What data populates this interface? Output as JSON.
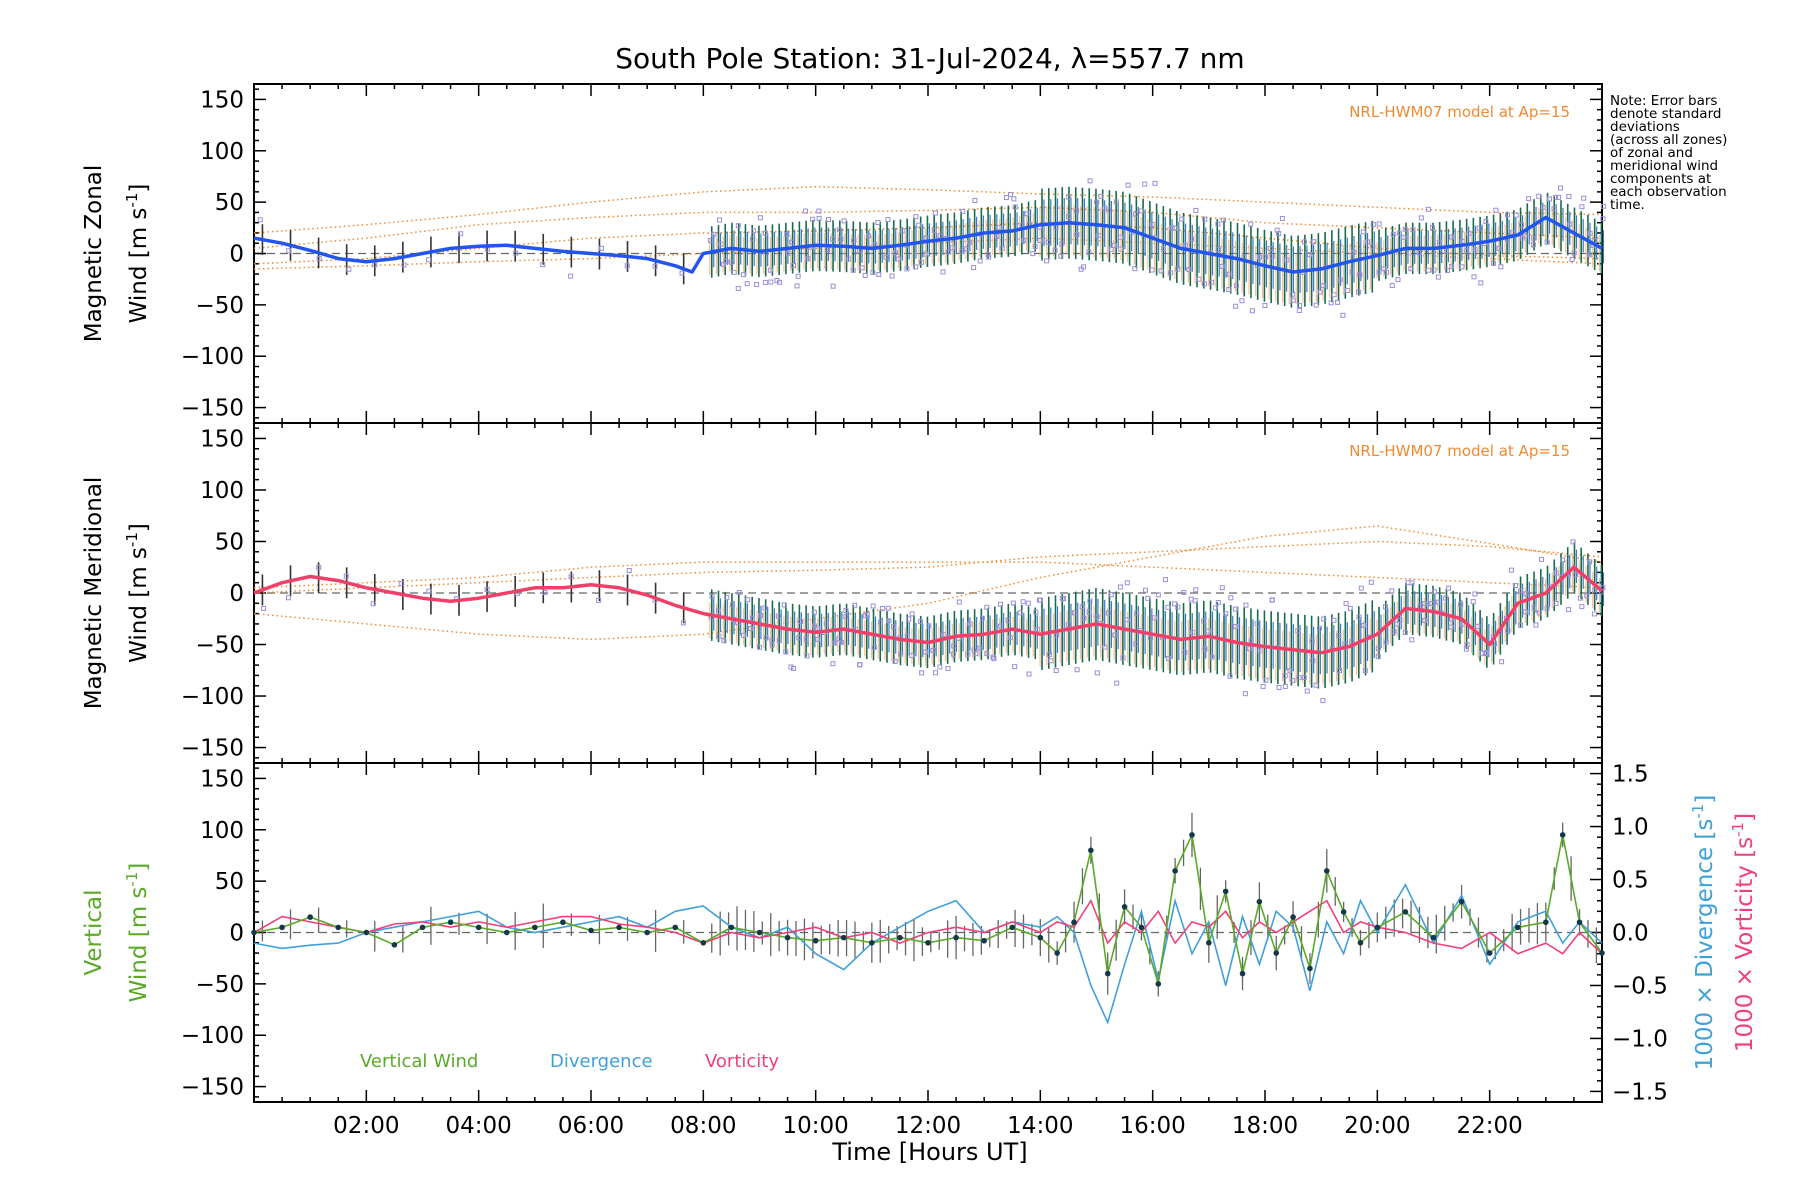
{
  "chart_data": {
    "title": "South Pole Station: 31-Jul-2024, λ=557.7 nm",
    "xlabel": "Time [Hours UT]",
    "xlim": [
      0,
      24
    ],
    "xticks": [
      2,
      4,
      6,
      8,
      10,
      12,
      14,
      16,
      18,
      20,
      22
    ],
    "xtick_labels": [
      "02:00",
      "04:00",
      "06:00",
      "08:00",
      "10:00",
      "12:00",
      "14:00",
      "16:00",
      "18:00",
      "20:00",
      "22:00"
    ],
    "yticks": [
      -150,
      -100,
      -50,
      0,
      50,
      100,
      150
    ],
    "ytick_labels": [
      "−150",
      "−100",
      "−50",
      "0",
      "50",
      "100",
      "150"
    ],
    "note": [
      "Note: Error bars",
      "denote standard",
      "deviations",
      "(across all zones)",
      "of zonal and",
      "meridional wind",
      "components at",
      "each observation",
      "time."
    ],
    "panels": [
      {
        "name": "zonal",
        "type": "line",
        "ylabel1": "Magnetic Zonal",
        "ylabel2": "Wind [m s",
        "ylabel2_sup": "-1",
        "ylabel2_end": "]",
        "ylim": [
          -165,
          165
        ],
        "model_label": "NRL-HWM07 model at Ap=15",
        "line_color": "#2255ee",
        "model_color": "#f08a30",
        "series": {
          "t": [
            0,
            0.5,
            1,
            1.5,
            2,
            2.5,
            3,
            3.5,
            4,
            4.5,
            5,
            5.5,
            6,
            6.5,
            7,
            7.5,
            7.8,
            8,
            8.5,
            9,
            9.5,
            10,
            10.5,
            11,
            11.5,
            12,
            12.5,
            13,
            13.5,
            14,
            14.5,
            15,
            15.5,
            16,
            16.5,
            17,
            17.5,
            18,
            18.5,
            19,
            19.5,
            20,
            20.5,
            21,
            21.5,
            22,
            22.5,
            23,
            23.5,
            24
          ],
          "v": [
            15,
            10,
            3,
            -5,
            -8,
            -5,
            0,
            5,
            7,
            8,
            5,
            2,
            0,
            -2,
            -5,
            -12,
            -18,
            0,
            5,
            2,
            5,
            8,
            7,
            5,
            8,
            12,
            15,
            20,
            22,
            28,
            30,
            28,
            25,
            15,
            5,
            0,
            -5,
            -12,
            -18,
            -15,
            -8,
            -2,
            5,
            5,
            8,
            12,
            18,
            35,
            20,
            5
          ]
        },
        "model_series": [
          {
            "t": [
              0,
              2,
              4,
              6,
              8,
              10,
              12,
              14,
              16,
              18,
              20,
              22,
              24
            ],
            "v": [
              20,
              28,
              38,
              50,
              60,
              65,
              62,
              58,
              55,
              50,
              45,
              40,
              38
            ]
          },
          {
            "t": [
              0,
              2,
              4,
              6,
              8,
              10,
              12,
              14,
              16,
              18,
              20,
              22,
              24
            ],
            "v": [
              5,
              15,
              28,
              35,
              40,
              40,
              42,
              45,
              40,
              30,
              25,
              20,
              15
            ]
          },
          {
            "t": [
              0,
              2,
              4,
              6,
              8,
              10,
              12,
              14,
              16,
              18,
              20,
              22,
              24
            ],
            "v": [
              -10,
              -5,
              5,
              15,
              20,
              22,
              25,
              30,
              25,
              15,
              5,
              -2,
              -5
            ]
          },
          {
            "t": [
              0,
              2,
              4,
              6,
              8,
              10,
              12,
              14,
              16,
              18,
              20,
              22,
              24
            ],
            "v": [
              -15,
              -12,
              -8,
              -5,
              0,
              5,
              10,
              15,
              10,
              5,
              0,
              -5,
              -10
            ]
          }
        ]
      },
      {
        "name": "meridional",
        "type": "line",
        "ylabel1": "Magnetic Meridional",
        "ylabel2": "Wind [m s",
        "ylabel2_sup": "-1",
        "ylabel2_end": "]",
        "ylim": [
          -165,
          165
        ],
        "model_label": "NRL-HWM07 model at Ap=15",
        "line_color": "#f0406a",
        "model_color": "#f08a30",
        "series": {
          "t": [
            0,
            0.5,
            1,
            1.5,
            2,
            2.5,
            3,
            3.5,
            4,
            4.5,
            5,
            5.5,
            6,
            6.5,
            7,
            7.5,
            8,
            8.5,
            9,
            9.5,
            10,
            10.5,
            11,
            11.5,
            12,
            12.5,
            13,
            13.5,
            14,
            14.5,
            15,
            15.5,
            16,
            16.5,
            17,
            17.5,
            18,
            18.5,
            19,
            19.5,
            20,
            20.5,
            21,
            21.5,
            22,
            22.5,
            23,
            23.5,
            24
          ],
          "v": [
            0,
            10,
            16,
            12,
            5,
            0,
            -5,
            -8,
            -5,
            0,
            5,
            5,
            8,
            5,
            -2,
            -12,
            -20,
            -25,
            -30,
            -35,
            -38,
            -35,
            -40,
            -45,
            -48,
            -42,
            -40,
            -35,
            -40,
            -35,
            -30,
            -35,
            -40,
            -45,
            -42,
            -48,
            -52,
            -55,
            -58,
            -52,
            -40,
            -15,
            -18,
            -25,
            -50,
            -10,
            0,
            25,
            2
          ]
        },
        "model_series": [
          {
            "t": [
              0,
              2,
              4,
              6,
              8,
              10,
              12,
              14,
              16,
              18,
              20,
              22,
              24
            ],
            "v": [
              -20,
              -30,
              -40,
              -45,
              -40,
              -25,
              -10,
              15,
              35,
              55,
              65,
              48,
              30
            ]
          },
          {
            "t": [
              0,
              2,
              4,
              6,
              8,
              10,
              12,
              14,
              16,
              18,
              20,
              22,
              24
            ],
            "v": [
              0,
              5,
              10,
              15,
              20,
              22,
              25,
              35,
              40,
              45,
              50,
              45,
              35
            ]
          },
          {
            "t": [
              0,
              2,
              4,
              6,
              8,
              10,
              12,
              14,
              16,
              18,
              20,
              22,
              24
            ],
            "v": [
              5,
              10,
              15,
              25,
              30,
              30,
              30,
              30,
              25,
              20,
              15,
              10,
              5
            ]
          }
        ]
      },
      {
        "name": "vertical",
        "type": "line",
        "ylabel1": "Vertical",
        "ylabel2": "Wind [m s",
        "ylabel2_sup": "-1",
        "ylabel2_end": "]",
        "ylabel_color": "#5aaa28",
        "ylim": [
          -165,
          165
        ],
        "y2lim": [
          -1.6,
          1.6
        ],
        "y2ticks": [
          -1.5,
          -1.0,
          -0.5,
          0.0,
          0.5,
          1.0,
          1.5
        ],
        "y2tick_labels": [
          "−1.5",
          "−1.0",
          "−0.5",
          "0.0",
          "0.5",
          "1.0",
          "1.5"
        ],
        "y2label_div": "1000 × Divergence [s",
        "y2label_div_color": "#40a0d8",
        "y2label_vort": "1000 × Vorticity [s",
        "y2label_vort_color": "#f0407a",
        "y2label_sup": "-1",
        "y2label_end": "]",
        "legend": [
          {
            "label": "Vertical Wind",
            "color": "#5aaa28"
          },
          {
            "label": "Divergence",
            "color": "#40a0d8"
          },
          {
            "label": "Vorticity",
            "color": "#f0407a"
          }
        ],
        "series": [
          {
            "name": "Vertical Wind",
            "color": "#5aaa28",
            "t": [
              0,
              0.5,
              1,
              1.5,
              2,
              2.5,
              3,
              3.5,
              4,
              4.5,
              5,
              5.5,
              6,
              6.5,
              7,
              7.5,
              8,
              8.5,
              9,
              9.5,
              10,
              10.5,
              11,
              11.5,
              12,
              12.5,
              13,
              13.5,
              14,
              14.3,
              14.6,
              14.9,
              15.2,
              15.5,
              15.8,
              16.1,
              16.4,
              16.7,
              17,
              17.3,
              17.6,
              17.9,
              18.2,
              18.5,
              18.8,
              19.1,
              19.4,
              19.7,
              20,
              20.5,
              21,
              21.5,
              22,
              22.5,
              23,
              23.3,
              23.6,
              24
            ],
            "v": [
              0,
              5,
              15,
              5,
              0,
              -12,
              5,
              10,
              5,
              0,
              5,
              10,
              2,
              5,
              0,
              5,
              -10,
              5,
              0,
              -5,
              -8,
              -5,
              -10,
              -5,
              -10,
              -5,
              -8,
              5,
              -5,
              -20,
              10,
              80,
              -40,
              25,
              5,
              -50,
              60,
              95,
              -10,
              40,
              -40,
              30,
              -20,
              15,
              -35,
              60,
              20,
              -10,
              5,
              20,
              -5,
              30,
              -20,
              5,
              10,
              95,
              10,
              -20
            ]
          },
          {
            "name": "Divergence",
            "color": "#40a0d8",
            "t": [
              0,
              0.5,
              1,
              1.5,
              2,
              2.5,
              3,
              3.5,
              4,
              4.5,
              5,
              5.5,
              6,
              6.5,
              7,
              7.5,
              8,
              8.5,
              9,
              9.5,
              10,
              10.5,
              11,
              11.5,
              12,
              12.5,
              13,
              13.5,
              14,
              14.3,
              14.6,
              14.9,
              15.2,
              15.5,
              15.8,
              16.1,
              16.4,
              16.7,
              17,
              17.3,
              17.6,
              17.9,
              18.2,
              18.5,
              18.8,
              19.1,
              19.4,
              19.7,
              20,
              20.5,
              21,
              21.5,
              22,
              22.5,
              23,
              23.3,
              23.6,
              24
            ],
            "v": [
              -0.1,
              -0.15,
              -0.12,
              -0.1,
              0.0,
              0.05,
              0.1,
              0.15,
              0.2,
              0.05,
              0.0,
              0.05,
              0.1,
              0.15,
              0.05,
              0.2,
              0.25,
              0.05,
              -0.05,
              0.05,
              -0.2,
              -0.35,
              -0.1,
              0.05,
              0.2,
              0.3,
              0.0,
              0.1,
              0.05,
              0.15,
              0.0,
              -0.5,
              -0.85,
              -0.3,
              0.2,
              -0.45,
              0.3,
              -0.2,
              0.1,
              -0.5,
              0.15,
              -0.3,
              0.2,
              0.05,
              -0.55,
              0.1,
              -0.2,
              0.3,
              0.0,
              0.45,
              -0.1,
              0.35,
              -0.3,
              0.1,
              0.2,
              -0.1,
              0.1,
              -0.1
            ]
          },
          {
            "name": "Vorticity",
            "color": "#f0407a",
            "t": [
              0,
              0.5,
              1,
              1.5,
              2,
              2.5,
              3,
              3.5,
              4,
              4.5,
              5,
              5.5,
              6,
              6.5,
              7,
              7.5,
              8,
              8.5,
              9,
              9.5,
              10,
              10.5,
              11,
              11.5,
              12,
              12.5,
              13,
              13.5,
              14,
              14.3,
              14.6,
              14.9,
              15.2,
              15.5,
              15.8,
              16.1,
              16.4,
              16.7,
              17,
              17.3,
              17.6,
              17.9,
              18.2,
              18.5,
              18.8,
              19.1,
              19.4,
              19.7,
              20,
              20.5,
              21,
              21.5,
              22,
              22.5,
              23,
              23.3,
              23.6,
              24
            ],
            "v": [
              0.0,
              0.15,
              0.1,
              0.05,
              0.0,
              0.08,
              0.1,
              0.05,
              0.1,
              0.05,
              0.1,
              0.15,
              0.15,
              0.08,
              0.05,
              0.0,
              -0.1,
              0.0,
              -0.05,
              0.0,
              0.05,
              -0.05,
              0.0,
              -0.1,
              0.0,
              0.05,
              0.0,
              0.1,
              0.0,
              0.1,
              0.05,
              0.3,
              -0.1,
              0.1,
              0.0,
              0.2,
              -0.1,
              0.1,
              0.05,
              0.2,
              -0.05,
              0.1,
              0.0,
              0.1,
              0.2,
              0.3,
              0.0,
              0.1,
              0.05,
              0.0,
              -0.1,
              -0.15,
              0.0,
              -0.2,
              -0.1,
              -0.2,
              0.0,
              -0.2
            ]
          }
        ]
      }
    ]
  }
}
